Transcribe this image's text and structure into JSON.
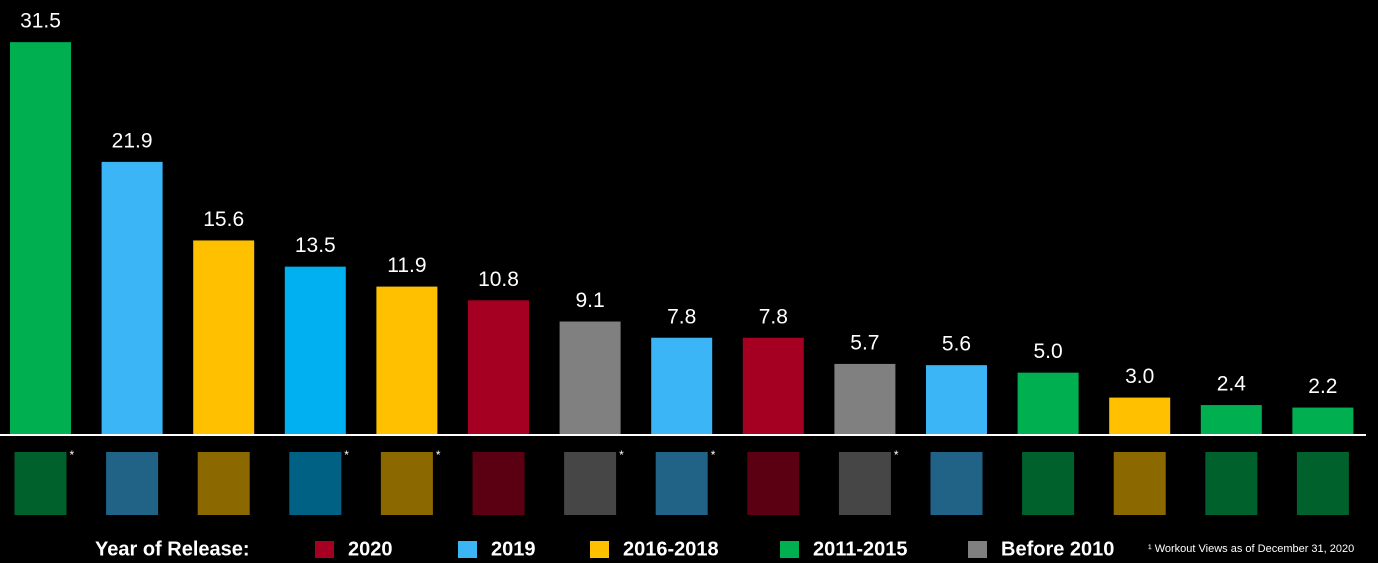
{
  "chart_data": {
    "type": "bar",
    "categories": [
      null,
      null,
      null,
      null,
      null,
      null,
      null,
      null,
      null,
      null,
      null,
      null,
      null,
      null,
      null
    ],
    "values": [
      31.5,
      21.9,
      15.6,
      13.5,
      11.9,
      10.8,
      9.1,
      7.8,
      7.8,
      5.7,
      5.6,
      5.0,
      3.0,
      2.4,
      2.2
    ],
    "value_labels": [
      "31.5",
      "21.9",
      "15.6",
      "13.5",
      "11.9",
      "10.8",
      "9.1",
      "7.8",
      "7.8",
      "5.7",
      "5.6",
      "5.0",
      "3.0",
      "2.4",
      "2.2"
    ],
    "colors": [
      "#00b050",
      "#3bb5f5",
      "#ffc000",
      "#00b0f0",
      "#ffc000",
      "#a50021",
      "#808080",
      "#3bb5f5",
      "#a50021",
      "#808080",
      "#3bb5f5",
      "#00b050",
      "#ffc000",
      "#00b050",
      "#00b050"
    ],
    "asterisks": [
      "*",
      null,
      null,
      "*",
      "*",
      null,
      "*",
      "*",
      null,
      "*",
      null,
      null,
      null,
      null,
      null
    ],
    "ylim": [
      0,
      34.8
    ],
    "legend": {
      "title": "Year of Release:",
      "entries": [
        {
          "name": "2020",
          "color": "#a50021"
        },
        {
          "name": "2019",
          "color": "#3bb5f5"
        },
        {
          "name": "2016-2018",
          "color": "#ffc000"
        },
        {
          "name": "2011-2015",
          "color": "#00b050"
        },
        {
          "name": "Before 2010",
          "color": "#808080"
        }
      ]
    },
    "footnote": "¹ Workout Views as of December 31, 2020"
  }
}
